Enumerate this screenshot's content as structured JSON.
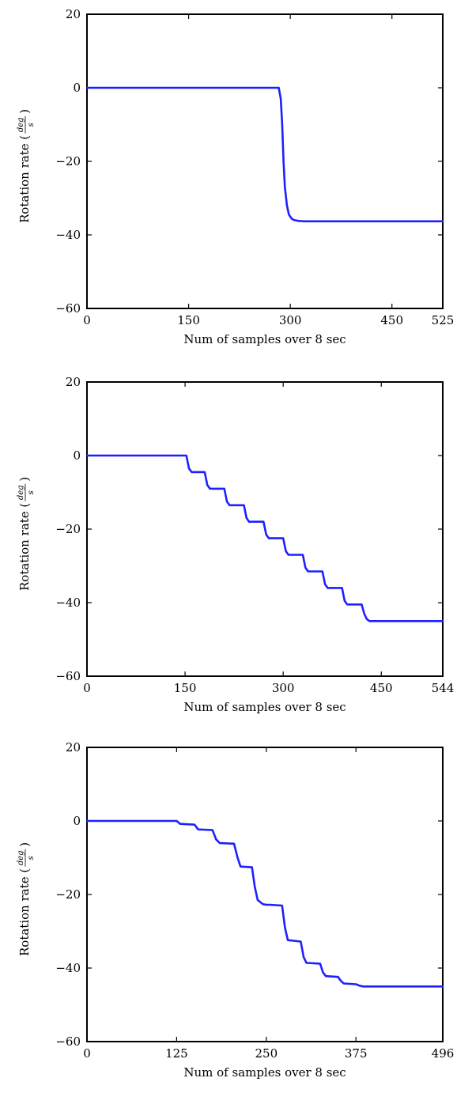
{
  "chart_data": [
    {
      "type": "line",
      "xlabel": "Num of samples over 8 sec",
      "ylabel": {
        "prefix": "Rotation rate (",
        "numerator": "deg",
        "denominator": "s",
        "suffix": ")"
      },
      "xlim": [
        0,
        525
      ],
      "ylim": [
        -60,
        20
      ],
      "xticks": [
        0,
        150,
        300,
        450,
        525
      ],
      "xtick_labels": [
        "0",
        "150",
        "300",
        "450",
        "525"
      ],
      "yticks": [
        20,
        0,
        -20,
        -40,
        -60
      ],
      "ytick_labels": [
        "20",
        "0",
        "−20",
        "−40",
        "−60"
      ],
      "grid": false,
      "line_color": "#1f1fff",
      "series": [
        {
          "x": [
            0,
            283,
            286,
            288,
            290,
            292,
            295,
            298,
            302,
            306,
            312,
            320,
            525
          ],
          "y": [
            0,
            0,
            -3,
            -10,
            -20,
            -27,
            -32,
            -34.5,
            -35.6,
            -36,
            -36.2,
            -36.3,
            -36.3
          ]
        }
      ]
    },
    {
      "type": "line",
      "xlabel": "Num of samples over 8 sec",
      "ylabel": {
        "prefix": "Rotation rate (",
        "numerator": "deg",
        "denominator": "s",
        "suffix": ")"
      },
      "xlim": [
        0,
        544
      ],
      "ylim": [
        -60,
        20
      ],
      "xticks": [
        0,
        150,
        300,
        450,
        544
      ],
      "xtick_labels": [
        "0",
        "150",
        "300",
        "450",
        "544"
      ],
      "yticks": [
        20,
        0,
        -20,
        -40,
        -60
      ],
      "ytick_labels": [
        "20",
        "0",
        "−20",
        "−40",
        "−60"
      ],
      "grid": false,
      "line_color": "#1f1fff",
      "series": [
        {
          "x": [
            0,
            152,
            156,
            160,
            180,
            184,
            188,
            210,
            214,
            218,
            240,
            244,
            248,
            270,
            274,
            278,
            300,
            304,
            308,
            330,
            334,
            338,
            360,
            364,
            368,
            390,
            394,
            398,
            420,
            424,
            428,
            432,
            440,
            450,
            544
          ],
          "y": [
            0,
            0,
            -3.5,
            -4.5,
            -4.5,
            -8,
            -9,
            -9,
            -12.5,
            -13.5,
            -13.5,
            -17,
            -18,
            -18,
            -21.5,
            -22.5,
            -22.5,
            -26,
            -27,
            -27,
            -30.5,
            -31.5,
            -31.5,
            -35,
            -36,
            -36,
            -39.5,
            -40.5,
            -40.5,
            -43,
            -44.5,
            -45,
            -45,
            -45,
            -45
          ]
        }
      ]
    },
    {
      "type": "line",
      "xlabel": "Num of samples over 8 sec",
      "ylabel": {
        "prefix": "Rotation rate (",
        "numerator": "deg",
        "denominator": "s",
        "suffix": ")"
      },
      "xlim": [
        0,
        496
      ],
      "ylim": [
        -60,
        20
      ],
      "xticks": [
        0,
        125,
        250,
        375,
        496
      ],
      "xtick_labels": [
        "0",
        "125",
        "250",
        "375",
        "496"
      ],
      "yticks": [
        20,
        0,
        -20,
        -40,
        -60
      ],
      "ytick_labels": [
        "20",
        "0",
        "−20",
        "−40",
        "−60"
      ],
      "grid": false,
      "line_color": "#1f1fff",
      "series": [
        {
          "x": [
            0,
            125,
            130,
            150,
            155,
            175,
            180,
            185,
            205,
            210,
            214,
            230,
            234,
            238,
            245,
            250,
            255,
            272,
            276,
            280,
            298,
            302,
            306,
            325,
            329,
            333,
            350,
            354,
            358,
            375,
            380,
            385,
            395,
            405,
            496
          ],
          "y": [
            0,
            0,
            -0.8,
            -1,
            -2.3,
            -2.5,
            -5,
            -6,
            -6.2,
            -10,
            -12.4,
            -12.6,
            -18,
            -21.5,
            -22.6,
            -22.8,
            -22.8,
            -23,
            -29,
            -32.4,
            -32.8,
            -37,
            -38.6,
            -38.8,
            -41.2,
            -42.2,
            -42.4,
            -43.5,
            -44.2,
            -44.4,
            -44.8,
            -45,
            -45,
            -45,
            -45
          ]
        }
      ]
    }
  ]
}
